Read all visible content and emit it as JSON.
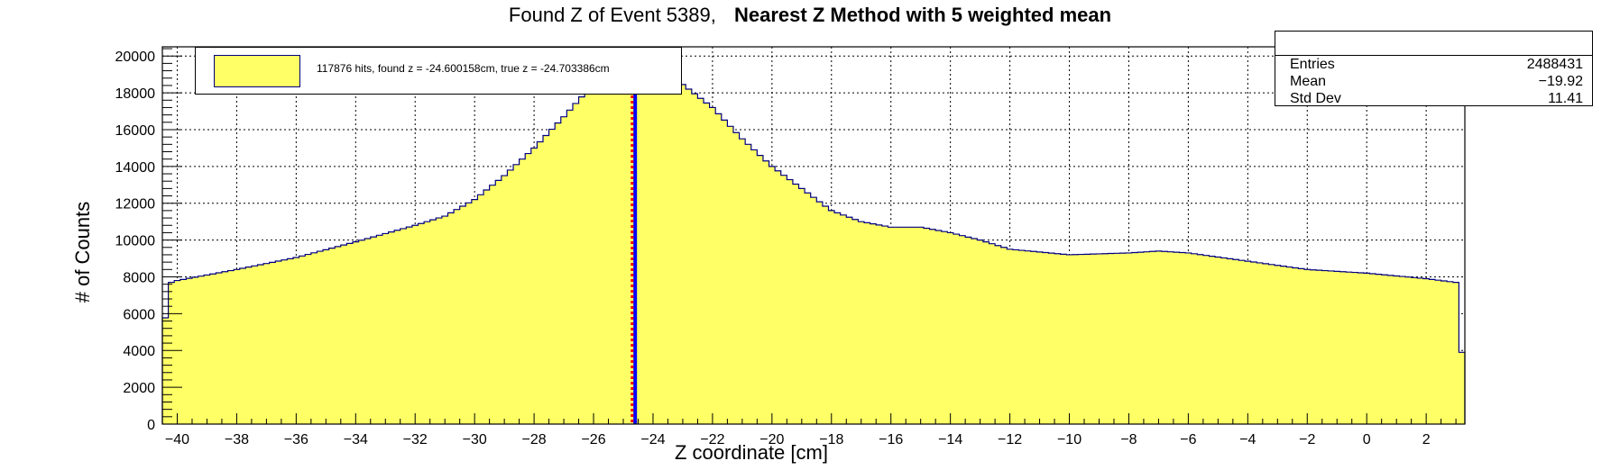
{
  "title": {
    "part1": "Found Z of Event 5389,",
    "part2": "Nearest Z Method with 5 weighted mean"
  },
  "stats": {
    "entries_label": "Entries",
    "entries_value": "2488431",
    "mean_label": "Mean",
    "mean_value": "−19.92",
    "stddev_label": "Std Dev",
    "stddev_value": "11.41"
  },
  "legend": {
    "entry": "117876 hits, found z = -24.600158cm, true z = -24.703386cm"
  },
  "colors": {
    "fill": "#ffff66",
    "outline": "#000080",
    "found_line": "#0000ff",
    "true_line": "#ff0000",
    "grid": "#000000"
  },
  "chart_data": {
    "type": "bar",
    "style": "histogram",
    "xlabel": "Z coordinate [cm]",
    "ylabel": "# of Counts",
    "xlim": [
      -40.5,
      3.3
    ],
    "ylim": [
      0,
      20500
    ],
    "grid": true,
    "bin_width": 0.2,
    "x_ticks": [
      -40,
      -38,
      -36,
      -34,
      -32,
      -30,
      -28,
      -26,
      -24,
      -22,
      -20,
      -18,
      -16,
      -14,
      -12,
      -10,
      -8,
      -6,
      -4,
      -2,
      0,
      2
    ],
    "x_tick_labels": [
      "−40",
      "−38",
      "−36",
      "−34",
      "−32",
      "−30",
      "−28",
      "−26",
      "−24",
      "−22",
      "−20",
      "−18",
      "−16",
      "−14",
      "−12",
      "−10",
      "−8",
      "−6",
      "−4",
      "−2",
      "0",
      "2"
    ],
    "y_ticks": [
      0,
      2000,
      4000,
      6000,
      8000,
      10000,
      12000,
      14000,
      16000,
      18000,
      20000
    ],
    "y_tick_labels": [
      "0",
      "2000",
      "4000",
      "6000",
      "8000",
      "10000",
      "12000",
      "14000",
      "16000",
      "18000",
      "20000"
    ],
    "envelope": [
      [
        -40.5,
        3900
      ],
      [
        -40.3,
        7650
      ],
      [
        -40.0,
        7800
      ],
      [
        -38.0,
        8400
      ],
      [
        -36.0,
        9050
      ],
      [
        -34.0,
        9900
      ],
      [
        -32.0,
        10800
      ],
      [
        -31.0,
        11300
      ],
      [
        -30.0,
        12200
      ],
      [
        -29.0,
        13500
      ],
      [
        -28.0,
        15000
      ],
      [
        -27.0,
        16700
      ],
      [
        -26.0,
        18500
      ],
      [
        -25.2,
        20200
      ],
      [
        -24.0,
        20300
      ],
      [
        -23.2,
        18700
      ],
      [
        -22.0,
        17200
      ],
      [
        -21.0,
        15500
      ],
      [
        -20.0,
        14000
      ],
      [
        -19.0,
        12800
      ],
      [
        -18.0,
        11600
      ],
      [
        -17.0,
        11000
      ],
      [
        -16.0,
        10700
      ],
      [
        -15.0,
        10700
      ],
      [
        -14.0,
        10400
      ],
      [
        -13.0,
        10000
      ],
      [
        -12.0,
        9500
      ],
      [
        -10.0,
        9200
      ],
      [
        -8.0,
        9300
      ],
      [
        -7.0,
        9400
      ],
      [
        -6.0,
        9300
      ],
      [
        -4.0,
        8850
      ],
      [
        -2.0,
        8400
      ],
      [
        0.0,
        8200
      ],
      [
        2.0,
        7900
      ],
      [
        3.0,
        7700
      ],
      [
        3.1,
        3900
      ],
      [
        3.3,
        3900
      ]
    ],
    "lines": [
      {
        "name": "found z",
        "x": -24.600158
      },
      {
        "name": "true z",
        "x": -24.703386
      }
    ]
  }
}
